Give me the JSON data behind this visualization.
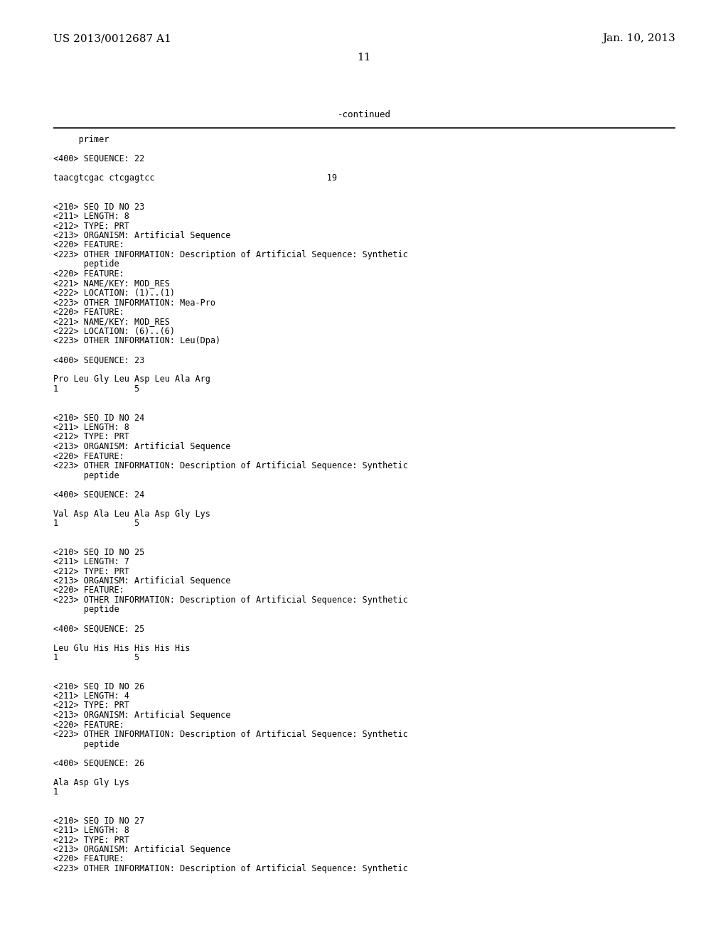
{
  "header_left": "US 2013/0012687 A1",
  "header_right": "Jan. 10, 2013",
  "page_number": "11",
  "continued_label": "-continued",
  "background_color": "#ffffff",
  "text_color": "#000000",
  "lines": [
    {
      "text": "     primer"
    },
    {
      "text": ""
    },
    {
      "text": "<400> SEQUENCE: 22"
    },
    {
      "text": ""
    },
    {
      "text": "taacgtcgac ctcgagtcc                                  19"
    },
    {
      "text": ""
    },
    {
      "text": ""
    },
    {
      "text": "<210> SEQ ID NO 23"
    },
    {
      "text": "<211> LENGTH: 8"
    },
    {
      "text": "<212> TYPE: PRT"
    },
    {
      "text": "<213> ORGANISM: Artificial Sequence"
    },
    {
      "text": "<220> FEATURE:"
    },
    {
      "text": "<223> OTHER INFORMATION: Description of Artificial Sequence: Synthetic"
    },
    {
      "text": "      peptide"
    },
    {
      "text": "<220> FEATURE:"
    },
    {
      "text": "<221> NAME/KEY: MOD_RES"
    },
    {
      "text": "<222> LOCATION: (1)..(1)"
    },
    {
      "text": "<223> OTHER INFORMATION: Mea-Pro"
    },
    {
      "text": "<220> FEATURE:"
    },
    {
      "text": "<221> NAME/KEY: MOD_RES"
    },
    {
      "text": "<222> LOCATION: (6)..(6)"
    },
    {
      "text": "<223> OTHER INFORMATION: Leu(Dpa)"
    },
    {
      "text": ""
    },
    {
      "text": "<400> SEQUENCE: 23"
    },
    {
      "text": ""
    },
    {
      "text": "Pro Leu Gly Leu Asp Leu Ala Arg"
    },
    {
      "text": "1               5"
    },
    {
      "text": ""
    },
    {
      "text": ""
    },
    {
      "text": "<210> SEQ ID NO 24"
    },
    {
      "text": "<211> LENGTH: 8"
    },
    {
      "text": "<212> TYPE: PRT"
    },
    {
      "text": "<213> ORGANISM: Artificial Sequence"
    },
    {
      "text": "<220> FEATURE:"
    },
    {
      "text": "<223> OTHER INFORMATION: Description of Artificial Sequence: Synthetic"
    },
    {
      "text": "      peptide"
    },
    {
      "text": ""
    },
    {
      "text": "<400> SEQUENCE: 24"
    },
    {
      "text": ""
    },
    {
      "text": "Val Asp Ala Leu Ala Asp Gly Lys"
    },
    {
      "text": "1               5"
    },
    {
      "text": ""
    },
    {
      "text": ""
    },
    {
      "text": "<210> SEQ ID NO 25"
    },
    {
      "text": "<211> LENGTH: 7"
    },
    {
      "text": "<212> TYPE: PRT"
    },
    {
      "text": "<213> ORGANISM: Artificial Sequence"
    },
    {
      "text": "<220> FEATURE:"
    },
    {
      "text": "<223> OTHER INFORMATION: Description of Artificial Sequence: Synthetic"
    },
    {
      "text": "      peptide"
    },
    {
      "text": ""
    },
    {
      "text": "<400> SEQUENCE: 25"
    },
    {
      "text": ""
    },
    {
      "text": "Leu Glu His His His His His"
    },
    {
      "text": "1               5"
    },
    {
      "text": ""
    },
    {
      "text": ""
    },
    {
      "text": "<210> SEQ ID NO 26"
    },
    {
      "text": "<211> LENGTH: 4"
    },
    {
      "text": "<212> TYPE: PRT"
    },
    {
      "text": "<213> ORGANISM: Artificial Sequence"
    },
    {
      "text": "<220> FEATURE:"
    },
    {
      "text": "<223> OTHER INFORMATION: Description of Artificial Sequence: Synthetic"
    },
    {
      "text": "      peptide"
    },
    {
      "text": ""
    },
    {
      "text": "<400> SEQUENCE: 26"
    },
    {
      "text": ""
    },
    {
      "text": "Ala Asp Gly Lys"
    },
    {
      "text": "1"
    },
    {
      "text": ""
    },
    {
      "text": ""
    },
    {
      "text": "<210> SEQ ID NO 27"
    },
    {
      "text": "<211> LENGTH: 8"
    },
    {
      "text": "<212> TYPE: PRT"
    },
    {
      "text": "<213> ORGANISM: Artificial Sequence"
    },
    {
      "text": "<220> FEATURE:"
    },
    {
      "text": "<223> OTHER INFORMATION: Description of Artificial Sequence: Synthetic"
    }
  ],
  "header_font_size": 11.0,
  "page_num_font_size": 11.0,
  "body_font_size": 8.5,
  "continued_font_size": 9.0
}
